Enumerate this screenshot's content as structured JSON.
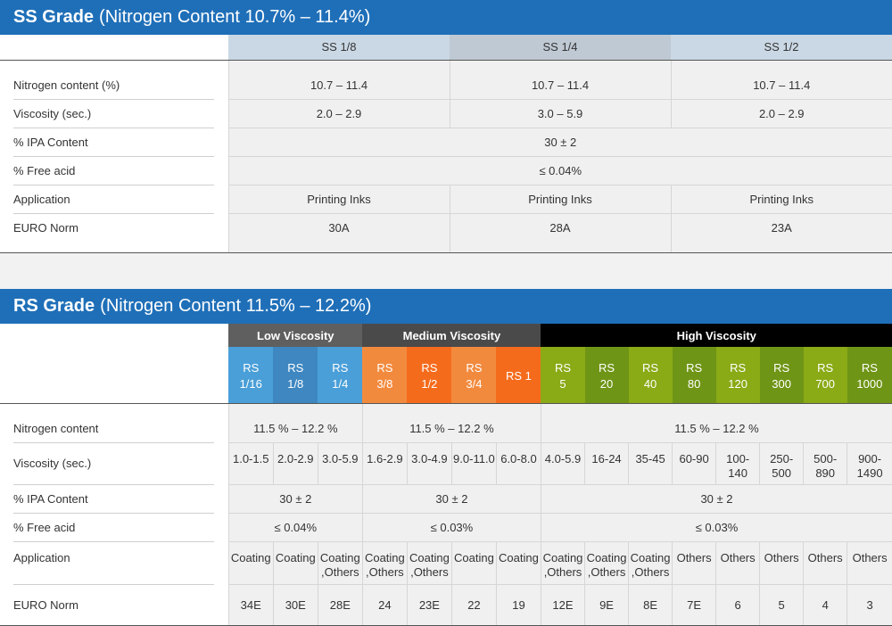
{
  "ss": {
    "title_bold": "SS Grade",
    "title_rest": "(Nitrogen Content 10.7% – 11.4%)",
    "columns": [
      "SS 1/8",
      "SS 1/4",
      "SS 1/2"
    ],
    "rows": {
      "nitrogen": {
        "label": "Nitrogen content (%)",
        "values": [
          "10.7 – 11.4",
          "10.7 – 11.4",
          "10.7 – 11.4"
        ]
      },
      "viscosity": {
        "label": "Viscosity (sec.)",
        "values": [
          "2.0 – 2.9",
          "3.0 – 5.9",
          "2.0 – 2.9"
        ]
      },
      "ipa": {
        "label": "% IPA Content",
        "value": "30 ± 2"
      },
      "acid": {
        "label": "% Free acid",
        "value": "≤ 0.04%"
      },
      "application": {
        "label": "Application",
        "values": [
          "Printing Inks",
          "Printing Inks",
          "Printing Inks"
        ]
      },
      "euro": {
        "label": "EURO Norm",
        "values": [
          "30A",
          "28A",
          "23A"
        ]
      }
    }
  },
  "rs": {
    "title_bold": "RS Grade",
    "title_rest": "(Nitrogen Content 11.5% – 12.2%)",
    "groups": [
      "Low Viscosity",
      "Medium Viscosity",
      "High Viscosity"
    ],
    "grades": [
      [
        "RS",
        "1/16"
      ],
      [
        "RS",
        "1/8"
      ],
      [
        "RS",
        "1/4"
      ],
      [
        "RS",
        "3/8"
      ],
      [
        "RS",
        "1/2"
      ],
      [
        "RS",
        "3/4"
      ],
      [
        "RS 1",
        ""
      ],
      [
        "RS",
        "5"
      ],
      [
        "RS",
        "20"
      ],
      [
        "RS",
        "40"
      ],
      [
        "RS",
        "80"
      ],
      [
        "RS",
        "120"
      ],
      [
        "RS",
        "300"
      ],
      [
        "RS",
        "700"
      ],
      [
        "RS",
        "1000"
      ]
    ],
    "rows": {
      "nitrogen": {
        "label": "Nitrogen content",
        "values": [
          "11.5 % – 12.2 %",
          "11.5 % – 12.2 %",
          "11.5 % – 12.2 %"
        ]
      },
      "viscosity": {
        "label": "Viscosity (sec.)",
        "values": [
          [
            "1.0-1.5",
            ""
          ],
          [
            "2.0-2.9",
            ""
          ],
          [
            "3.0-5.9",
            ""
          ],
          [
            "1.6-2.9",
            ""
          ],
          [
            "3.0-4.9",
            ""
          ],
          [
            "9.0-11.0",
            ""
          ],
          [
            "6.0-8.0",
            ""
          ],
          [
            "4.0-5.9",
            ""
          ],
          [
            "16-24",
            ""
          ],
          [
            "35-45",
            ""
          ],
          [
            "60-90",
            ""
          ],
          [
            "100-",
            "140"
          ],
          [
            "250-",
            "500"
          ],
          [
            "500-",
            "890"
          ],
          [
            "900-",
            "1490"
          ]
        ]
      },
      "ipa": {
        "label": "% IPA Content",
        "values": [
          "30 ± 2",
          "30 ± 2",
          "30 ± 2"
        ]
      },
      "acid": {
        "label": "% Free acid",
        "values": [
          "≤ 0.04%",
          "≤ 0.03%",
          "≤ 0.03%"
        ]
      },
      "application": {
        "label": "Application",
        "values": [
          [
            "Coating",
            ""
          ],
          [
            "Coating",
            ""
          ],
          [
            "Coating",
            ",Others"
          ],
          [
            "Coating",
            ",Others"
          ],
          [
            "Coating",
            ",Others"
          ],
          [
            "Coating",
            ""
          ],
          [
            "Coating",
            ""
          ],
          [
            "Coating",
            ",Others"
          ],
          [
            "Coating",
            ",Others"
          ],
          [
            "Coating",
            ",Others"
          ],
          [
            "Others",
            ""
          ],
          [
            "Others",
            ""
          ],
          [
            "Others",
            ""
          ],
          [
            "Others",
            ""
          ],
          [
            "Others",
            ""
          ]
        ]
      },
      "euro": {
        "label": "EURO Norm",
        "values": [
          "34E",
          "30E",
          "28E",
          "24",
          "23E",
          "22",
          "19",
          "12E",
          "9E",
          "8E",
          "7E",
          "6",
          "5",
          "4",
          "3"
        ]
      }
    }
  }
}
